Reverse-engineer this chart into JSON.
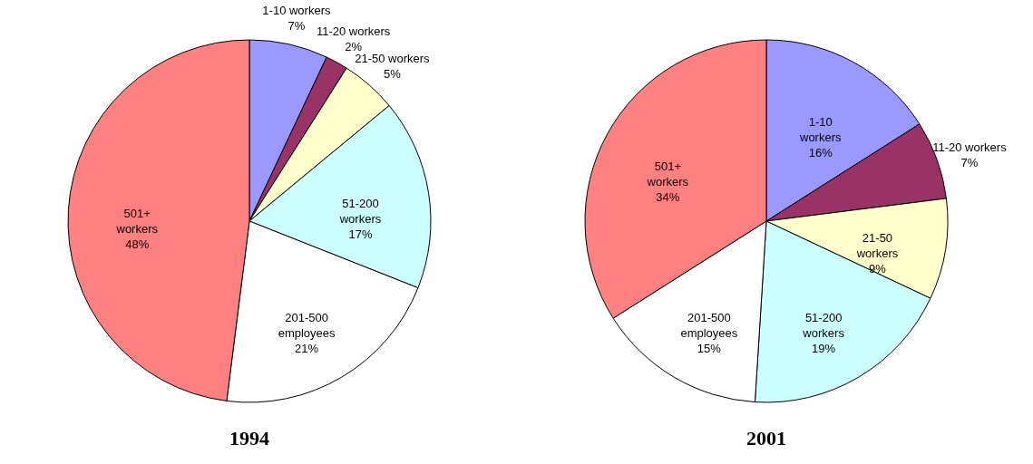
{
  "chart_data": [
    {
      "type": "pie",
      "title": "1994",
      "categories": [
        "1-10 workers",
        "11-20 workers",
        "21-50 workers",
        "51-200 workers",
        "201-500 employees",
        "501+ workers"
      ],
      "values": [
        7,
        2,
        5,
        17,
        21,
        48
      ],
      "value_labels": [
        "7%",
        "2%",
        "5%",
        "17%",
        "21%",
        "48%"
      ],
      "colors": [
        "#9999ff",
        "#993366",
        "#ffffcc",
        "#ccffff",
        "#ffffff",
        "#ff8080"
      ],
      "legend": false
    },
    {
      "type": "pie",
      "title": "2001",
      "categories": [
        "1-10 workers",
        "11-20 workers",
        "21-50 workers",
        "51-200 workers",
        "201-500 employees",
        "501+ workers"
      ],
      "values": [
        16,
        7,
        9,
        19,
        15,
        34
      ],
      "value_labels": [
        "16%",
        "7%",
        "9%",
        "19%",
        "15%",
        "34%"
      ],
      "colors": [
        "#9999ff",
        "#993366",
        "#ffffcc",
        "#ccffff",
        "#ffffff",
        "#ff8080"
      ],
      "legend": false
    }
  ]
}
